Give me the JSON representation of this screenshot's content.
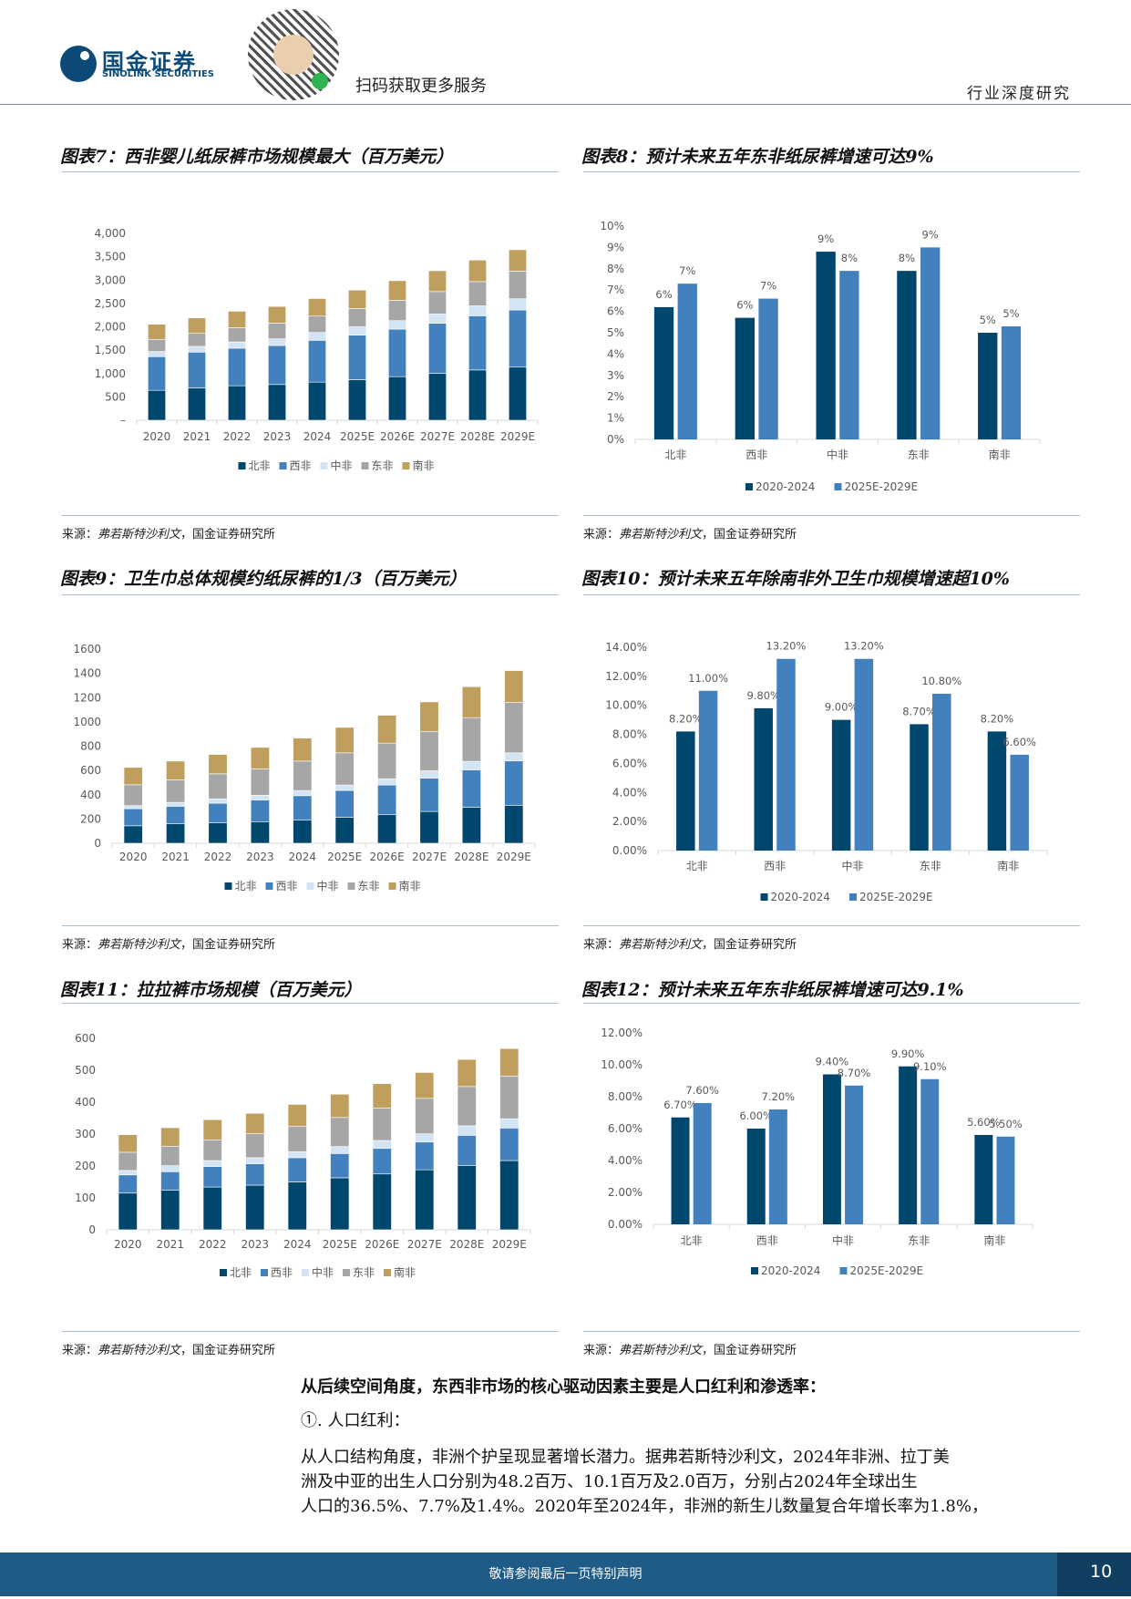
{
  "header": {
    "logo_cn": "国金证券",
    "logo_en": "SINOLINK SECURITIES",
    "scan_text": "扫码获取更多服务",
    "report_type": "行业深度研究"
  },
  "colors": {
    "north": "#00476e",
    "west": "#4280be",
    "central": "#d3e4f4",
    "east": "#a6a6a6",
    "south": "#c09f5e",
    "period1": "#00476e",
    "period2": "#4280be"
  },
  "charts": [
    {
      "title": "图表7：西非婴儿纸尿裤市场规模最大（百万美元）",
      "source": "来源：",
      "source_italic": "弗若斯特沙利文",
      "source_rest": "，国金证券研究所"
    },
    {
      "title": "图表8：预计未来五年东非纸尿裤增速可达9%",
      "source": "来源：",
      "source_italic": "弗若斯特沙利文",
      "source_rest": "，国金证券研究所"
    },
    {
      "title": "图表9：卫生巾总体规模约纸尿裤的1/3（百万美元）",
      "source": "来源：",
      "source_italic": "弗若斯特沙利文",
      "source_rest": "，国金证券研究所"
    },
    {
      "title": "图表10：预计未来五年除南非外卫生巾规模增速超10%",
      "source": "来源：",
      "source_italic": "弗若斯特沙利文",
      "source_rest": "，国金证券研究所"
    },
    {
      "title": "图表11：拉拉裤市场规模（百万美元）",
      "source": "来源：",
      "source_italic": "弗若斯特沙利文",
      "source_rest": "，国金证券研究所"
    },
    {
      "title": "图表12：预计未来五年东非纸尿裤增速可达9.1%",
      "source": "来源：",
      "source_italic": "弗若斯特沙利文",
      "source_rest": "，国金证券研究所"
    }
  ],
  "chart_data": [
    {
      "type": "bar",
      "stacked": true,
      "categories": [
        "2020",
        "2021",
        "2022",
        "2023",
        "2024",
        "2025E",
        "2026E",
        "2027E",
        "2028E",
        "2029E"
      ],
      "ylim": [
        0,
        4000
      ],
      "y_ticks": [
        0,
        500,
        1000,
        1500,
        2000,
        2500,
        3000,
        3500,
        4000
      ],
      "y_tick_labels": [
        "–",
        "500",
        "1,000",
        "1,500",
        "2,000",
        "2,500",
        "3,000",
        "3,500",
        "4,000"
      ],
      "grid": false,
      "legend": "bottom",
      "series": [
        {
          "name": "北非",
          "color": "#00476e",
          "values": [
            641,
            693,
            739,
            765,
            816,
            868,
            933,
            1004,
            1076,
            1137
          ]
        },
        {
          "name": "西非",
          "color": "#4280be",
          "values": [
            720,
            765,
            803,
            835,
            895,
            953,
            1017,
            1070,
            1160,
            1224
          ]
        },
        {
          "name": "中非",
          "color": "#d3e4f4",
          "values": [
            110,
            123,
            136,
            143,
            168,
            181,
            182,
            201,
            213,
            240
          ]
        },
        {
          "name": "东非",
          "color": "#a6a6a6",
          "values": [
            260,
            279,
            305,
            337,
            350,
            389,
            434,
            479,
            519,
            590
          ]
        },
        {
          "name": "南非",
          "color": "#c09f5e",
          "values": [
            325,
            330,
            350,
            356,
            376,
            395,
            421,
            447,
            460,
            459
          ]
        }
      ]
    },
    {
      "type": "bar",
      "stacked": false,
      "categories": [
        "北非",
        "西非",
        "中非",
        "东非",
        "南非"
      ],
      "ylim": [
        0,
        10
      ],
      "y_ticks": [
        0,
        1,
        2,
        3,
        4,
        5,
        6,
        7,
        8,
        9,
        10
      ],
      "y_tick_labels": [
        "0%",
        "1%",
        "2%",
        "3%",
        "4%",
        "5%",
        "6%",
        "7%",
        "8%",
        "9%",
        "10%"
      ],
      "grid": false,
      "legend": "bottom",
      "series": [
        {
          "name": "2020-2024",
          "color": "#00476e",
          "values": [
            6.2,
            5.7,
            8.8,
            7.9,
            5.0
          ],
          "labels": [
            "6%",
            "6%",
            "9%",
            "8%",
            "5%"
          ]
        },
        {
          "name": "2025E-2029E",
          "color": "#4280be",
          "values": [
            7.3,
            6.6,
            7.9,
            9.0,
            5.3
          ],
          "labels": [
            "7%",
            "7%",
            "8%",
            "9%",
            "5%"
          ]
        }
      ]
    },
    {
      "type": "bar",
      "stacked": true,
      "categories": [
        "2020",
        "2021",
        "2022",
        "2023",
        "2024",
        "2025E",
        "2026E",
        "2027E",
        "2028E",
        "2029E"
      ],
      "ylim": [
        0,
        1600
      ],
      "y_ticks": [
        0,
        200,
        400,
        600,
        800,
        1000,
        1200,
        1400,
        1600
      ],
      "y_tick_labels": [
        "0",
        "200",
        "400",
        "600",
        "800",
        "1000",
        "1200",
        "1400",
        "1600"
      ],
      "grid": false,
      "legend": "bottom",
      "series": [
        {
          "name": "北非",
          "color": "#00476e",
          "values": [
            144,
            160,
            170,
            178,
            190,
            215,
            235,
            262,
            297,
            313
          ]
        },
        {
          "name": "西非",
          "color": "#4280be",
          "values": [
            141,
            145,
            160,
            179,
            202,
            220,
            245,
            275,
            308,
            365
          ]
        },
        {
          "name": "中非",
          "color": "#d3e4f4",
          "values": [
            25,
            32,
            35,
            38,
            43,
            45,
            52,
            60,
            70,
            67
          ]
        },
        {
          "name": "东非",
          "color": "#a6a6a6",
          "values": [
            172,
            185,
            207,
            217,
            242,
            265,
            293,
            325,
            360,
            415
          ]
        },
        {
          "name": "南非",
          "color": "#c09f5e",
          "values": [
            143,
            155,
            160,
            178,
            190,
            210,
            230,
            243,
            255,
            263
          ]
        }
      ]
    },
    {
      "type": "bar",
      "stacked": false,
      "categories": [
        "北非",
        "西非",
        "中非",
        "东非",
        "南非"
      ],
      "ylim": [
        0,
        14
      ],
      "y_ticks": [
        0,
        2,
        4,
        6,
        8,
        10,
        12,
        14
      ],
      "y_tick_labels": [
        "0.00%",
        "2.00%",
        "4.00%",
        "6.00%",
        "8.00%",
        "10.00%",
        "12.00%",
        "14.00%"
      ],
      "grid": false,
      "legend": "bottom",
      "series": [
        {
          "name": "2020-2024",
          "color": "#00476e",
          "values": [
            8.2,
            9.8,
            9.0,
            8.7,
            8.2
          ],
          "labels": [
            "8.20%",
            "9.80%",
            "9.00%",
            "8.70%",
            "8.20%"
          ]
        },
        {
          "name": "2025E-2029E",
          "color": "#4280be",
          "values": [
            11.0,
            13.2,
            13.2,
            10.8,
            6.6
          ],
          "labels": [
            "11.00%",
            "13.20%",
            "13.20%",
            "10.80%",
            "6.60%"
          ]
        }
      ]
    },
    {
      "type": "bar",
      "stacked": true,
      "categories": [
        "2020",
        "2021",
        "2022",
        "2023",
        "2024",
        "2025E",
        "2026E",
        "2027E",
        "2028E",
        "2029E"
      ],
      "ylim": [
        0,
        600
      ],
      "y_ticks": [
        0,
        100,
        200,
        300,
        400,
        500,
        600
      ],
      "y_tick_labels": [
        "0",
        "100",
        "200",
        "300",
        "400",
        "500",
        "600"
      ],
      "grid": false,
      "legend": "bottom",
      "series": [
        {
          "name": "北非",
          "color": "#00476e",
          "values": [
            115,
            124,
            134,
            140,
            150,
            163,
            175,
            188,
            201,
            217
          ]
        },
        {
          "name": "西非",
          "color": "#4280be",
          "values": [
            57,
            58,
            64,
            67,
            76,
            76,
            80,
            87,
            95,
            102
          ]
        },
        {
          "name": "中非",
          "color": "#d3e4f4",
          "values": [
            14,
            19,
            19,
            19,
            19,
            22,
            25,
            26,
            30,
            29
          ]
        },
        {
          "name": "东非",
          "color": "#a6a6a6",
          "values": [
            57,
            61,
            65,
            75,
            80,
            91,
            102,
            111,
            123,
            134
          ]
        },
        {
          "name": "南非",
          "color": "#c09f5e",
          "values": [
            55,
            58,
            63,
            64,
            68,
            73,
            76,
            81,
            85,
            86
          ]
        }
      ]
    },
    {
      "type": "bar",
      "stacked": false,
      "categories": [
        "北非",
        "西非",
        "中非",
        "东非",
        "南非"
      ],
      "ylim": [
        0,
        12
      ],
      "y_ticks": [
        0,
        2,
        4,
        6,
        8,
        10,
        12
      ],
      "y_tick_labels": [
        "0.00%",
        "2.00%",
        "4.00%",
        "6.00%",
        "8.00%",
        "10.00%",
        "12.00%"
      ],
      "grid": false,
      "legend": "bottom",
      "series": [
        {
          "name": "2020-2024",
          "color": "#00476e",
          "values": [
            6.7,
            6.0,
            9.4,
            9.9,
            5.6
          ],
          "labels": [
            "6.70%",
            "6.00%",
            "9.40%",
            "9.90%",
            "5.60%"
          ]
        },
        {
          "name": "2025E-2029E",
          "color": "#4280be",
          "values": [
            7.6,
            7.2,
            8.7,
            9.1,
            5.5
          ],
          "labels": [
            "7.60%",
            "7.20%",
            "8.70%",
            "9.10%",
            "5.50%"
          ]
        }
      ]
    }
  ],
  "body": {
    "heading": "从后续空间角度，东西非市场的核心驱动因素主要是人口红利和渗透率：",
    "subheading": "①. 人口红利：",
    "paragraph_lines": [
      "从人口结构角度，非洲个护呈现显著增长潜力。据弗若斯特沙利文，2024年非洲、拉丁美",
      "洲及中亚的出生人口分别为48.2百万、10.1百万及2.0百万，分别占2024年全球出生",
      "人口的36.5%、7.7%及1.4%。2020年至2024年，非洲的新生儿数量复合年增长率为1.8%，"
    ]
  },
  "footer": {
    "notice": "敬请参阅最后一页特别声明",
    "page": "10"
  }
}
